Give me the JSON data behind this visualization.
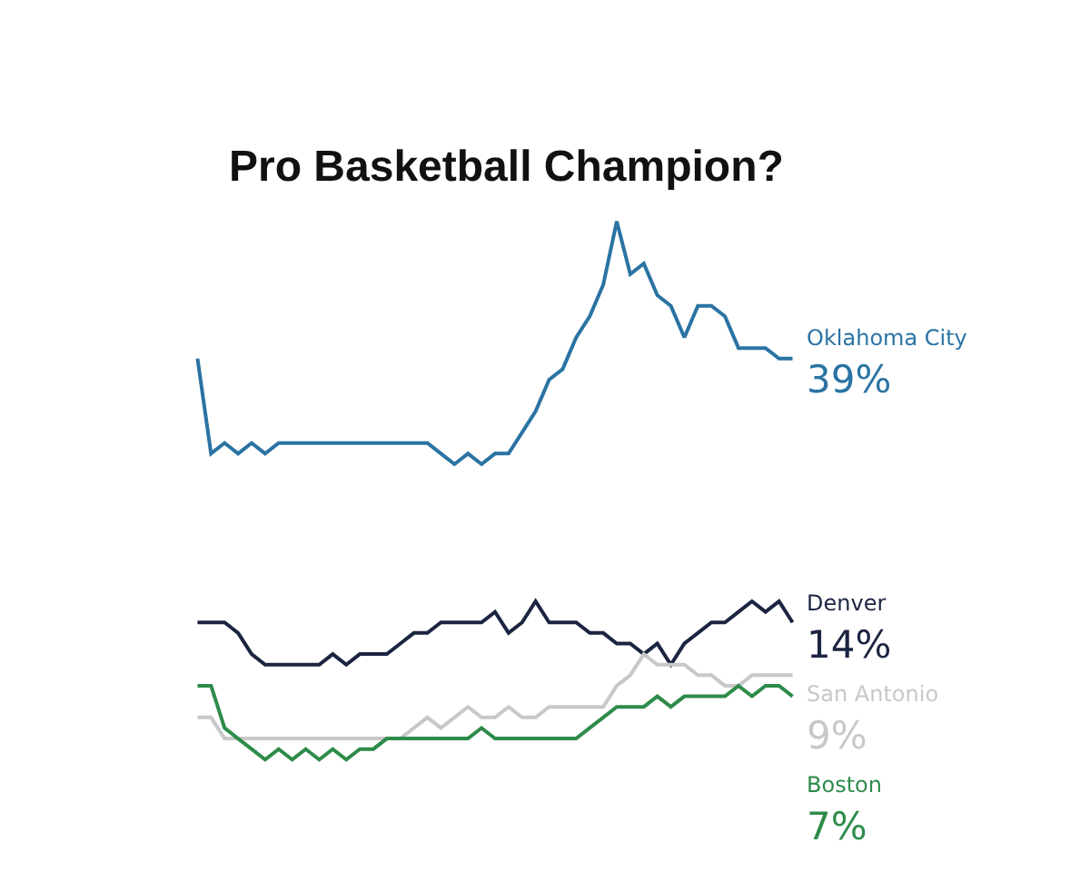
{
  "chart_data": {
    "type": "line",
    "title": "Pro Basketball Champion?",
    "tick_labels": false,
    "categories": [
      null,
      null,
      null,
      null,
      null,
      null,
      null,
      null,
      null,
      null,
      null,
      null,
      null,
      null,
      null,
      null,
      null,
      null,
      null,
      null,
      null,
      null,
      null,
      null,
      null,
      null,
      null,
      null,
      null,
      null,
      null,
      null,
      null,
      null,
      null,
      null,
      null,
      null,
      null,
      null,
      null,
      null,
      null,
      null,
      null
    ],
    "series": [
      {
        "name": "Oklahoma City",
        "color": "#2a73a3",
        "values": [
          39,
          30,
          31,
          30,
          31,
          30,
          31,
          31,
          31,
          31,
          31,
          31,
          31,
          31,
          31,
          31,
          31,
          31,
          30,
          29,
          30,
          29,
          30,
          30,
          32,
          34,
          37,
          38,
          41,
          43,
          46,
          52,
          47,
          48,
          45,
          44,
          41,
          44,
          44,
          43,
          40,
          40,
          40,
          39,
          39
        ],
        "value_labels": [
          null,
          null,
          null,
          null,
          null,
          null,
          null,
          null,
          null,
          null,
          null,
          null,
          null,
          null,
          null,
          null,
          null,
          null,
          null,
          null,
          null,
          null,
          null,
          null,
          null,
          null,
          null,
          null,
          null,
          null,
          null,
          null,
          null,
          null,
          null,
          null,
          null,
          null,
          null,
          null,
          null,
          null,
          null,
          null,
          "39%"
        ]
      },
      {
        "name": "Denver",
        "color": "#1b2440",
        "values": [
          14,
          14,
          14,
          13,
          11,
          10,
          10,
          10,
          10,
          10,
          11,
          10,
          11,
          11,
          11,
          12,
          13,
          13,
          14,
          14,
          14,
          14,
          15,
          13,
          14,
          16,
          14,
          14,
          14,
          13,
          13,
          12,
          12,
          11,
          12,
          10,
          12,
          13,
          14,
          14,
          15,
          16,
          15,
          16,
          14
        ],
        "value_labels": [
          null,
          null,
          null,
          null,
          null,
          null,
          null,
          null,
          null,
          null,
          null,
          null,
          null,
          null,
          null,
          null,
          null,
          null,
          null,
          null,
          null,
          null,
          null,
          null,
          null,
          null,
          null,
          null,
          null,
          null,
          null,
          null,
          null,
          null,
          null,
          null,
          null,
          null,
          null,
          null,
          null,
          null,
          null,
          null,
          "14%"
        ]
      },
      {
        "name": "San Antonio",
        "color": "#c8c8c8",
        "values": [
          5,
          5,
          3,
          3,
          3,
          3,
          3,
          3,
          3,
          3,
          3,
          3,
          3,
          3,
          3,
          3,
          4,
          5,
          4,
          5,
          6,
          5,
          5,
          6,
          5,
          5,
          6,
          6,
          6,
          6,
          6,
          8,
          9,
          11,
          10,
          10,
          10,
          9,
          9,
          8,
          8,
          9,
          9,
          9,
          9
        ],
        "value_labels": [
          null,
          null,
          null,
          null,
          null,
          null,
          null,
          null,
          null,
          null,
          null,
          null,
          null,
          null,
          null,
          null,
          null,
          null,
          null,
          null,
          null,
          null,
          null,
          null,
          null,
          null,
          null,
          null,
          null,
          null,
          null,
          null,
          null,
          null,
          null,
          null,
          null,
          null,
          null,
          null,
          null,
          null,
          null,
          null,
          "9%"
        ]
      },
      {
        "name": "Boston",
        "color": "#2e8b4a",
        "values": [
          8,
          8,
          4,
          3,
          2,
          1,
          2,
          1,
          2,
          1,
          2,
          1,
          2,
          2,
          3,
          3,
          3,
          3,
          3,
          3,
          3,
          4,
          3,
          3,
          3,
          3,
          3,
          3,
          3,
          4,
          5,
          6,
          6,
          6,
          7,
          6,
          7,
          7,
          7,
          7,
          8,
          7,
          8,
          8,
          7
        ],
        "value_labels": [
          null,
          null,
          null,
          null,
          null,
          null,
          null,
          null,
          null,
          null,
          null,
          null,
          null,
          null,
          null,
          null,
          null,
          null,
          null,
          null,
          null,
          null,
          null,
          null,
          null,
          null,
          null,
          null,
          null,
          null,
          null,
          null,
          null,
          null,
          null,
          null,
          null,
          null,
          null,
          null,
          null,
          null,
          null,
          null,
          "7%"
        ]
      }
    ]
  }
}
